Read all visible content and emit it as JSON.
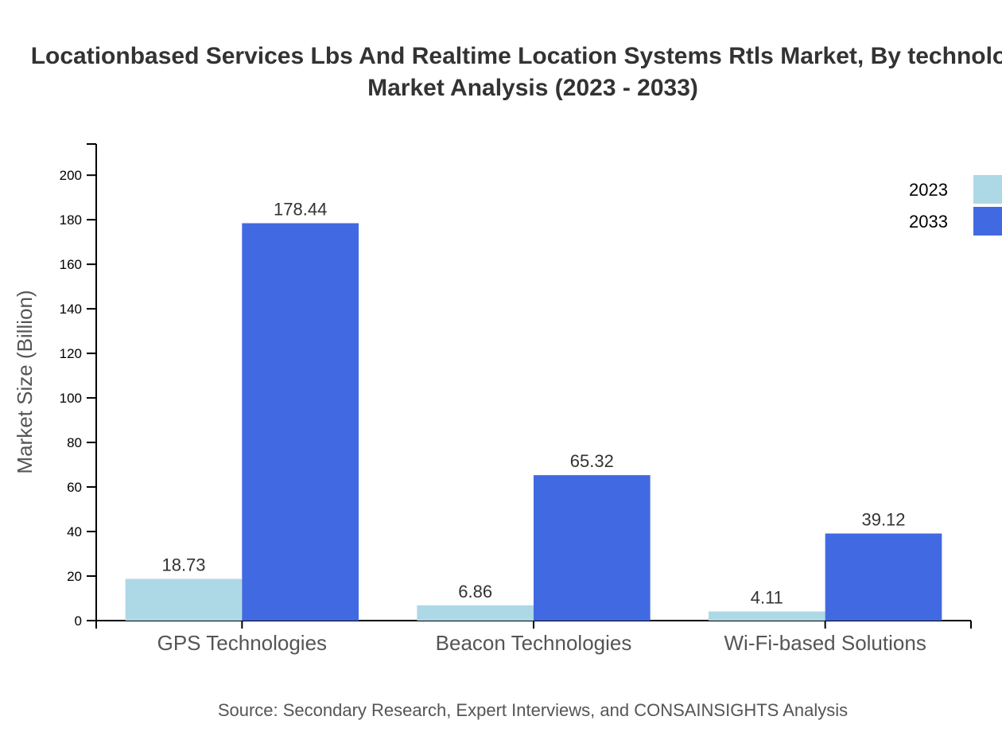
{
  "chart_data": {
    "type": "bar",
    "title_line1": "Locationbased Services Lbs And Realtime Location Systems Rtls Market, By technology",
    "title_line2": "Market Analysis (2023 - 2033)",
    "ylabel": "Market Size (Billion)",
    "xlabel": "",
    "ylim": [
      0,
      214
    ],
    "yticks": [
      0,
      20,
      40,
      60,
      80,
      100,
      120,
      140,
      160,
      180,
      200
    ],
    "categories": [
      "GPS Technologies",
      "Beacon Technologies",
      "Wi-Fi-based Solutions"
    ],
    "series": [
      {
        "name": "2023",
        "color": "#add8e6",
        "values": [
          18.73,
          6.86,
          4.11
        ]
      },
      {
        "name": "2033",
        "color": "#4169e1",
        "values": [
          178.44,
          65.32,
          39.12
        ]
      }
    ],
    "legend_position": "top-right",
    "grid": false,
    "source": "Source: Secondary Research, Expert Interviews, and CONSAINSIGHTS Analysis"
  }
}
